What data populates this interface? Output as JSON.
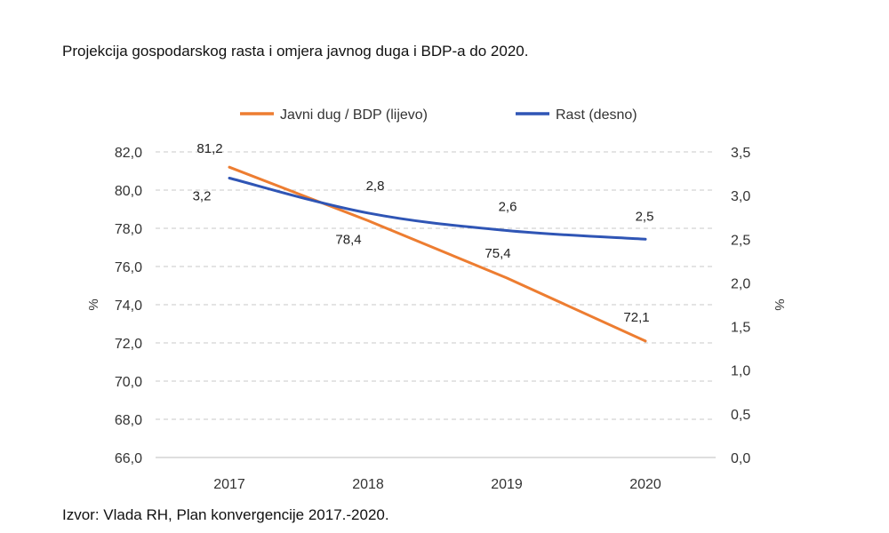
{
  "title": "Projekcija gospodarskog rasta i omjera javnog duga i BDP-a do 2020.",
  "source": "Izvor: Vlada RH, Plan konvergencije 2017.-2020.",
  "colors": {
    "debt": "#ed7d31",
    "growth": "#2f55b5",
    "grid": "#c8c8c8"
  },
  "chart_data": {
    "type": "line",
    "categories": [
      "2017",
      "2018",
      "2019",
      "2020"
    ],
    "series": [
      {
        "name": "Javni dug / BDP (lijevo)",
        "axis": "left",
        "values": [
          81.2,
          78.4,
          75.4,
          72.1
        ],
        "labels": [
          "81,2",
          "78,4",
          "75,4",
          "72,1"
        ]
      },
      {
        "name": "Rast (desno)",
        "axis": "right",
        "values": [
          3.2,
          2.8,
          2.6,
          2.5
        ],
        "labels": [
          "3,2",
          "2,8",
          "2,6",
          "2,5"
        ]
      }
    ],
    "y_left": {
      "label": "%",
      "range": [
        66,
        82
      ],
      "ticks": [
        82,
        80,
        78,
        76,
        74,
        72,
        70,
        68,
        66
      ],
      "tick_labels": [
        "82,0",
        "80,0",
        "78,0",
        "76,0",
        "74,0",
        "72,0",
        "70,0",
        "68,0",
        "66,0"
      ]
    },
    "y_right": {
      "label": "%",
      "range": [
        0,
        3.5
      ],
      "ticks": [
        3.5,
        3.0,
        2.5,
        2.0,
        1.5,
        1.0,
        0.5,
        0.0
      ],
      "tick_labels": [
        "3,5",
        "3,0",
        "2,5",
        "2,0",
        "1,5",
        "1,0",
        "0,5",
        "0,0"
      ]
    },
    "grid": true,
    "legend": "top-center"
  }
}
